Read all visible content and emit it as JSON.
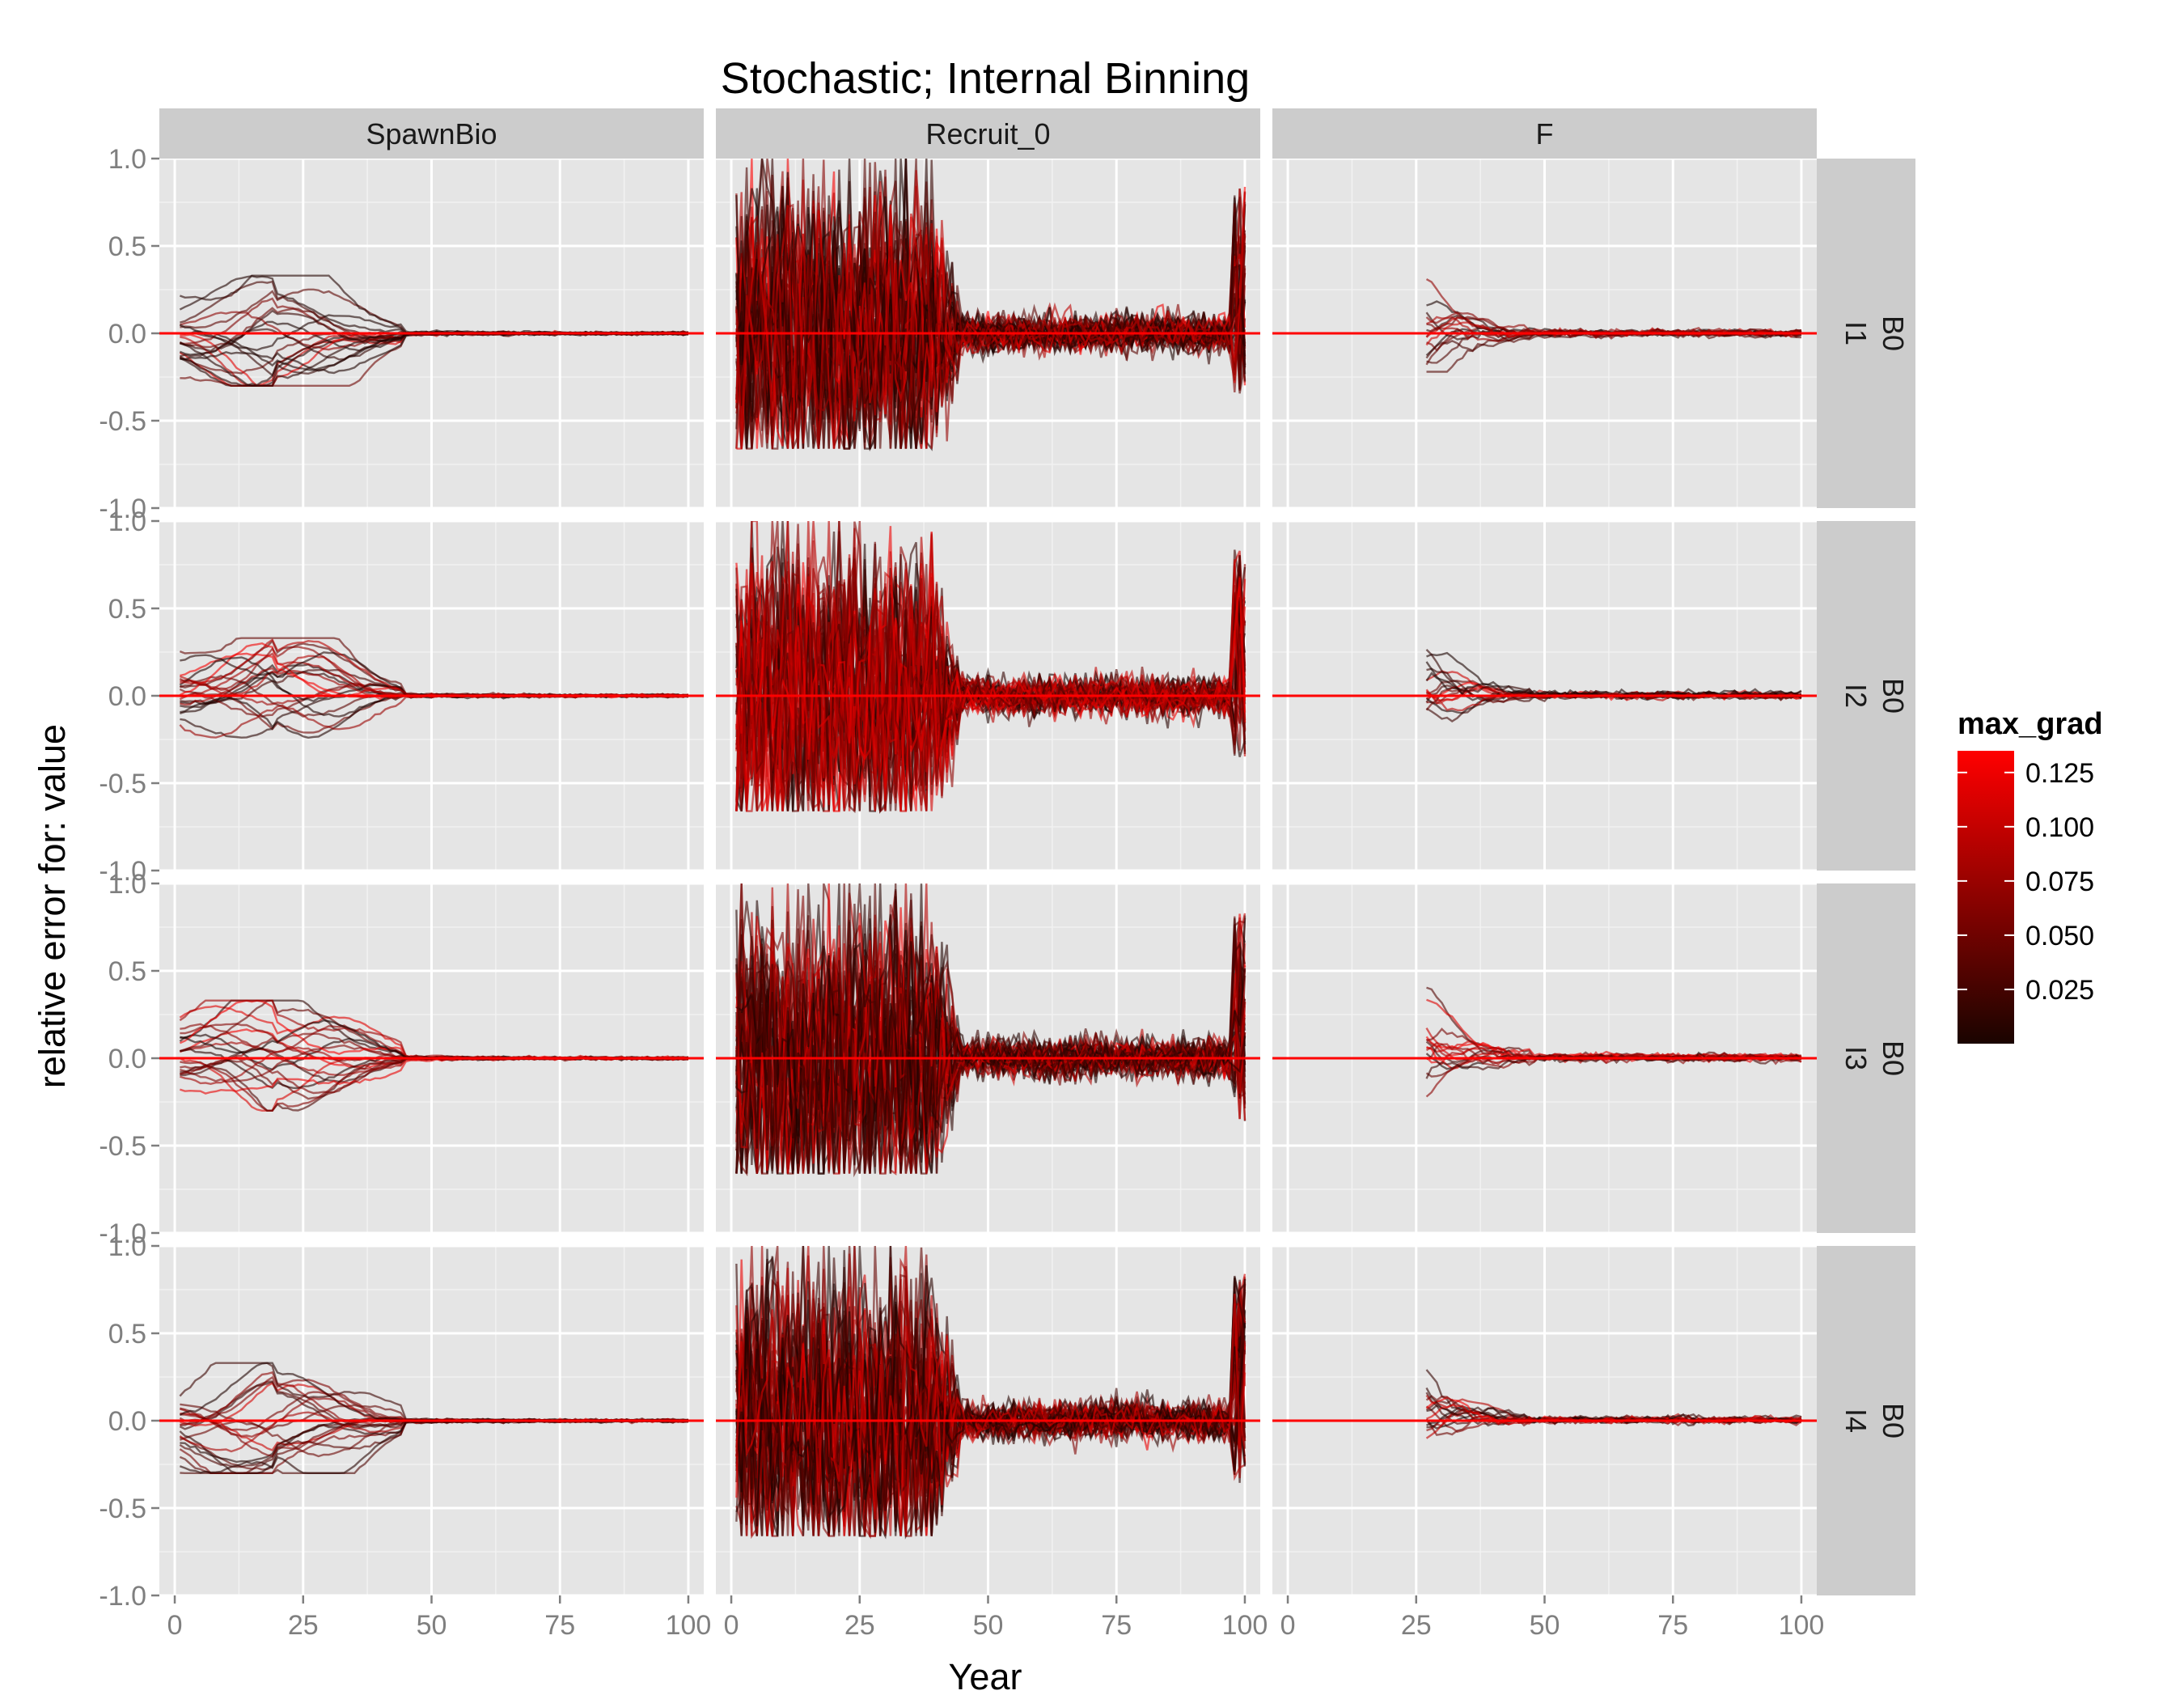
{
  "chart_data": {
    "type": "line",
    "title": "Stochastic; Internal Binning",
    "xlabel": "Year",
    "ylabel": "relative error for: value",
    "columns": [
      "SpawnBio",
      "Recruit_0",
      "F"
    ],
    "rows": [
      "I1",
      "I2",
      "I3",
      "I4"
    ],
    "row_group": "B0",
    "x_ticks": [
      "0",
      "25",
      "50",
      "75",
      "100"
    ],
    "y_ticks": [
      "-1.0",
      "-0.5",
      "0.0",
      "0.5",
      "1.0"
    ],
    "xlim": [
      -3,
      103
    ],
    "ylim": [
      -1,
      1
    ],
    "grid": true,
    "reference_line": {
      "y": 0,
      "color": "#ff0000"
    },
    "legend": {
      "title": "max_grad",
      "position": "right",
      "labels": [
        "0.125",
        "0.100",
        "0.075",
        "0.050",
        "0.025"
      ],
      "values": [
        0.125,
        0.1,
        0.075,
        0.05,
        0.025
      ],
      "range": [
        0.0,
        0.135
      ],
      "colors": [
        "#1a0400",
        "#ff0000"
      ]
    },
    "series_summary": [
      {
        "column": "SpawnBio",
        "x_range": [
          1,
          100
        ],
        "peak_abs_error": 0.3,
        "converges_after_year": 50
      },
      {
        "column": "Recruit_0",
        "x_range": [
          1,
          100
        ],
        "peak_abs_error": 1.0,
        "min_error": -0.65,
        "converges_after_year": 43,
        "settled_abs_error": 0.12,
        "terminal_spike": 1.0
      },
      {
        "column": "F",
        "x_range": [
          27,
          100
        ],
        "peak_abs_error": 0.4,
        "min_error": -0.2,
        "converges_after_year": 45
      }
    ]
  }
}
